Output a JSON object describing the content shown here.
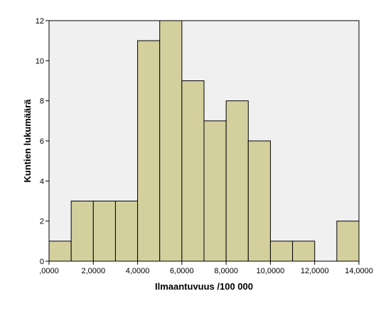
{
  "chart_data": {
    "type": "bar",
    "subtype": "histogram",
    "xlabel": "Ilmaantuvuus /100 000",
    "ylabel": "Kuntien lukumäärä",
    "xlim": [
      0,
      14
    ],
    "ylim": [
      0,
      12
    ],
    "x_ticks": [
      0,
      2,
      4,
      6,
      8,
      10,
      12,
      14
    ],
    "x_tick_labels": [
      ",0000",
      "2,0000",
      "4,0000",
      "6,0000",
      "8,0000",
      "10,0000",
      "12,0000",
      "14,0000"
    ],
    "y_ticks": [
      0,
      2,
      4,
      6,
      8,
      10,
      12
    ],
    "y_tick_labels": [
      "0",
      "2",
      "4",
      "6",
      "8",
      "10",
      "12"
    ],
    "bins": [
      {
        "x0": 0,
        "x1": 1,
        "count": 1
      },
      {
        "x0": 1,
        "x1": 2,
        "count": 3
      },
      {
        "x0": 2,
        "x1": 3,
        "count": 3
      },
      {
        "x0": 3,
        "x1": 4,
        "count": 3
      },
      {
        "x0": 4,
        "x1": 5,
        "count": 11
      },
      {
        "x0": 5,
        "x1": 6,
        "count": 12
      },
      {
        "x0": 6,
        "x1": 7,
        "count": 9
      },
      {
        "x0": 7,
        "x1": 8,
        "count": 7
      },
      {
        "x0": 8,
        "x1": 9,
        "count": 8
      },
      {
        "x0": 9,
        "x1": 10,
        "count": 6
      },
      {
        "x0": 10,
        "x1": 11,
        "count": 1
      },
      {
        "x0": 11,
        "x1": 12,
        "count": 1
      },
      {
        "x0": 12,
        "x1": 13,
        "count": 0
      },
      {
        "x0": 13,
        "x1": 14,
        "count": 2
      }
    ],
    "grid": false,
    "bar_color": "#d4d09e",
    "plot_background": "#f0f0f0"
  }
}
